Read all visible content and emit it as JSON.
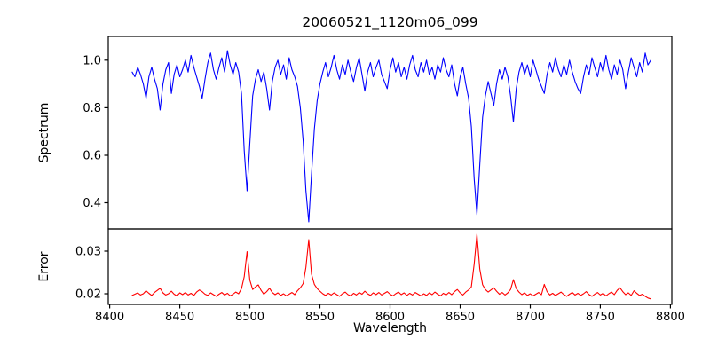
{
  "chart_data": {
    "type": "line",
    "title": "20060521_1120m06_099",
    "xlabel": "Wavelength",
    "xlim": [
      8399,
      8801
    ],
    "xticks": [
      8400,
      8450,
      8500,
      8550,
      8600,
      8650,
      8700,
      8750,
      8800
    ],
    "x_start": 8416,
    "x_step": 2,
    "grid": false,
    "legend": "none",
    "background": "#ffffff",
    "panels": [
      {
        "name": "spectrum",
        "ylabel": "Spectrum",
        "color": "#0000ff",
        "ylim": [
          0.29,
          1.1
        ],
        "yticks": [
          0.4,
          0.6,
          0.8,
          1.0
        ],
        "ytick_labels": [
          "0.4",
          "0.6",
          "0.8",
          "1.0"
        ],
        "values": [
          0.95,
          0.93,
          0.97,
          0.94,
          0.9,
          0.84,
          0.93,
          0.97,
          0.92,
          0.88,
          0.79,
          0.9,
          0.96,
          0.99,
          0.86,
          0.94,
          0.98,
          0.93,
          0.96,
          1.0,
          0.95,
          1.02,
          0.97,
          0.93,
          0.89,
          0.84,
          0.92,
          0.99,
          1.03,
          0.96,
          0.92,
          0.97,
          1.01,
          0.95,
          1.04,
          0.98,
          0.94,
          0.99,
          0.95,
          0.86,
          0.62,
          0.45,
          0.65,
          0.85,
          0.92,
          0.96,
          0.91,
          0.95,
          0.88,
          0.79,
          0.91,
          0.97,
          1.0,
          0.94,
          0.98,
          0.92,
          1.01,
          0.96,
          0.93,
          0.89,
          0.8,
          0.66,
          0.45,
          0.32,
          0.52,
          0.71,
          0.83,
          0.9,
          0.95,
          0.99,
          0.93,
          0.97,
          1.02,
          0.96,
          0.92,
          0.98,
          0.94,
          1.0,
          0.95,
          0.91,
          0.97,
          1.01,
          0.94,
          0.87,
          0.95,
          0.99,
          0.93,
          0.97,
          1.0,
          0.94,
          0.91,
          0.88,
          0.96,
          1.01,
          0.95,
          0.99,
          0.93,
          0.97,
          0.92,
          0.98,
          1.02,
          0.96,
          0.93,
          0.99,
          0.95,
          1.0,
          0.94,
          0.97,
          0.92,
          0.98,
          0.95,
          1.01,
          0.96,
          0.93,
          0.98,
          0.9,
          0.85,
          0.93,
          0.97,
          0.9,
          0.84,
          0.72,
          0.5,
          0.35,
          0.56,
          0.76,
          0.85,
          0.91,
          0.86,
          0.81,
          0.9,
          0.96,
          0.92,
          0.97,
          0.93,
          0.85,
          0.74,
          0.88,
          0.95,
          0.99,
          0.94,
          0.98,
          0.93,
          1.0,
          0.96,
          0.92,
          0.89,
          0.86,
          0.94,
          0.99,
          0.95,
          1.01,
          0.96,
          0.93,
          0.98,
          0.94,
          1.0,
          0.95,
          0.91,
          0.88,
          0.86,
          0.93,
          0.98,
          0.94,
          1.01,
          0.97,
          0.93,
          0.99,
          0.95,
          1.02,
          0.96,
          0.92,
          0.98,
          0.94,
          1.0,
          0.96,
          0.88,
          0.95,
          1.01,
          0.97,
          0.93,
          0.99,
          0.95,
          1.03,
          0.98,
          1.0
        ]
      },
      {
        "name": "error",
        "ylabel": "Error",
        "color": "#ff0000",
        "ylim": [
          0.0175,
          0.0352
        ],
        "yticks": [
          0.02,
          0.03
        ],
        "ytick_labels": [
          "0.02",
          "0.03"
        ],
        "values": [
          0.0196,
          0.0199,
          0.0202,
          0.0197,
          0.02,
          0.0207,
          0.0201,
          0.0196,
          0.0203,
          0.0208,
          0.0213,
          0.0202,
          0.0197,
          0.02,
          0.0206,
          0.0199,
          0.0195,
          0.0202,
          0.0198,
          0.0203,
          0.0197,
          0.0201,
          0.0196,
          0.0204,
          0.0209,
          0.0205,
          0.0199,
          0.0196,
          0.0202,
          0.0198,
          0.0194,
          0.0199,
          0.0203,
          0.0197,
          0.0201,
          0.0195,
          0.0199,
          0.0204,
          0.02,
          0.0212,
          0.024,
          0.0299,
          0.0232,
          0.021,
          0.0216,
          0.0221,
          0.0208,
          0.0199,
          0.0205,
          0.0213,
          0.0203,
          0.0198,
          0.0202,
          0.0196,
          0.02,
          0.0195,
          0.0199,
          0.0203,
          0.0198,
          0.0207,
          0.0214,
          0.0224,
          0.0262,
          0.0327,
          0.0246,
          0.0222,
          0.0212,
          0.0206,
          0.02,
          0.0196,
          0.0201,
          0.0197,
          0.0202,
          0.0198,
          0.0194,
          0.02,
          0.0204,
          0.0198,
          0.0195,
          0.0201,
          0.0197,
          0.0203,
          0.0199,
          0.0206,
          0.02,
          0.0196,
          0.0202,
          0.0198,
          0.0203,
          0.0197,
          0.0201,
          0.0205,
          0.0199,
          0.0195,
          0.02,
          0.0204,
          0.0198,
          0.0202,
          0.0196,
          0.0201,
          0.0197,
          0.0203,
          0.0199,
          0.0195,
          0.02,
          0.0196,
          0.0202,
          0.0198,
          0.0204,
          0.0199,
          0.0195,
          0.0201,
          0.0197,
          0.0203,
          0.0198,
          0.0205,
          0.021,
          0.0202,
          0.0197,
          0.0204,
          0.0209,
          0.0216,
          0.027,
          0.034,
          0.0258,
          0.0221,
          0.021,
          0.0204,
          0.0209,
          0.0214,
          0.0206,
          0.0199,
          0.0203,
          0.0197,
          0.0202,
          0.021,
          0.0233,
          0.0212,
          0.0204,
          0.0198,
          0.0202,
          0.0196,
          0.02,
          0.0195,
          0.0199,
          0.0203,
          0.0198,
          0.0222,
          0.0205,
          0.0197,
          0.0201,
          0.0196,
          0.02,
          0.0204,
          0.0198,
          0.0194,
          0.0199,
          0.0203,
          0.0197,
          0.0201,
          0.0196,
          0.02,
          0.0205,
          0.0198,
          0.0194,
          0.0199,
          0.0203,
          0.0197,
          0.0201,
          0.0195,
          0.02,
          0.0204,
          0.0198,
          0.0208,
          0.0214,
          0.0205,
          0.0198,
          0.0202,
          0.0196,
          0.0207,
          0.0201,
          0.0196,
          0.0199,
          0.0194,
          0.019,
          0.0188
        ]
      }
    ]
  }
}
